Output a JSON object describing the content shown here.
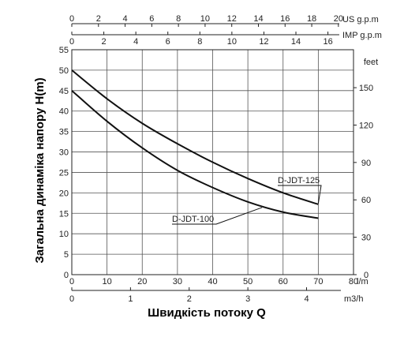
{
  "chart_data": {
    "type": "line",
    "title": "",
    "xlabel": "Швидкість потоку Q",
    "ylabel": "Загальна динаміка напору H(m)",
    "xlim": [
      0,
      80
    ],
    "ylim": [
      0,
      55
    ],
    "x_unit": "l/m",
    "grid": true,
    "x_ticks": [
      0,
      10,
      20,
      30,
      40,
      50,
      60,
      70,
      80
    ],
    "y_ticks": [
      0,
      5,
      10,
      15,
      20,
      25,
      30,
      35,
      40,
      45,
      50,
      55
    ],
    "secondary_axes": {
      "us_gpm": {
        "unit": "US g.p.m",
        "ticks": [
          0,
          2,
          4,
          6,
          8,
          10,
          12,
          14,
          16,
          18,
          20
        ]
      },
      "imp_gpm": {
        "unit": "IMP g.p.m",
        "ticks": [
          0,
          2,
          4,
          6,
          8,
          10,
          12,
          14,
          16
        ]
      },
      "m3h": {
        "unit": "m3/h",
        "ticks": [
          0,
          1,
          2,
          3,
          4
        ]
      },
      "feet": {
        "unit": "feet",
        "ticks": [
          0,
          30,
          60,
          90,
          120,
          150
        ]
      }
    },
    "series": [
      {
        "name": "D-JDT-125",
        "x": [
          0,
          10,
          20,
          30,
          40,
          50,
          60,
          70
        ],
        "y": [
          50,
          43,
          37,
          32,
          27.5,
          23.5,
          20,
          17.2
        ]
      },
      {
        "name": "D-JDT-100",
        "x": [
          0,
          10,
          20,
          30,
          40,
          50,
          60,
          70
        ],
        "y": [
          45,
          37.5,
          31,
          25.5,
          21.3,
          17.8,
          15.3,
          13.8
        ]
      }
    ]
  }
}
